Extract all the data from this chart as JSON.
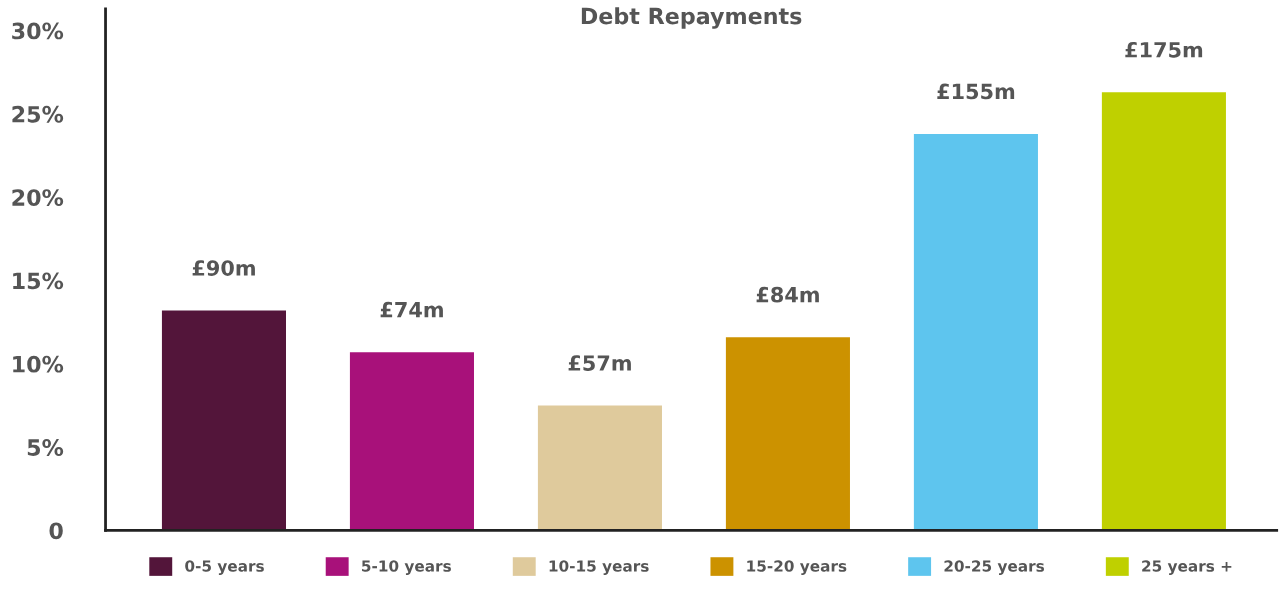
{
  "chart_data": {
    "type": "bar",
    "title": "Debt Repayments",
    "categories": [
      null,
      null,
      null,
      null,
      null,
      null
    ],
    "series": [
      {
        "name": "0-5 years",
        "color": "#53153a",
        "values": [
          13.2,
          null,
          null,
          null,
          null,
          null
        ]
      },
      {
        "name": "5-10 years",
        "color": "#a8117a",
        "values": [
          null,
          10.7,
          null,
          null,
          null,
          null
        ]
      },
      {
        "name": "10-15 years",
        "color": "#dfca9c",
        "values": [
          null,
          null,
          7.5,
          null,
          null,
          null
        ]
      },
      {
        "name": "15-20 years",
        "color": "#cc9200",
        "values": [
          null,
          null,
          null,
          11.6,
          null,
          null
        ]
      },
      {
        "name": "20-25 years",
        "color": "#5ec5ee",
        "values": [
          null,
          null,
          null,
          null,
          23.8,
          null
        ]
      },
      {
        "name": "25 years +",
        "color": "#bfd000",
        "values": [
          null,
          null,
          null,
          null,
          null,
          26.3
        ]
      }
    ],
    "annotations": [
      "£90m",
      "£74m",
      "£57m",
      "£84m",
      "£155m",
      "£175m"
    ],
    "ylim": [
      0,
      31.3
    ],
    "yticks": [
      {
        "value": 0,
        "label": "0"
      },
      {
        "value": 5,
        "label": "5%"
      },
      {
        "value": 10,
        "label": "10%"
      },
      {
        "value": 15,
        "label": "15%"
      },
      {
        "value": 20,
        "label": "20%"
      },
      {
        "value": 25,
        "label": "25%"
      },
      {
        "value": 30,
        "label": "30%"
      }
    ],
    "tick_labels": "y",
    "legend": "bottom",
    "grid": false
  }
}
